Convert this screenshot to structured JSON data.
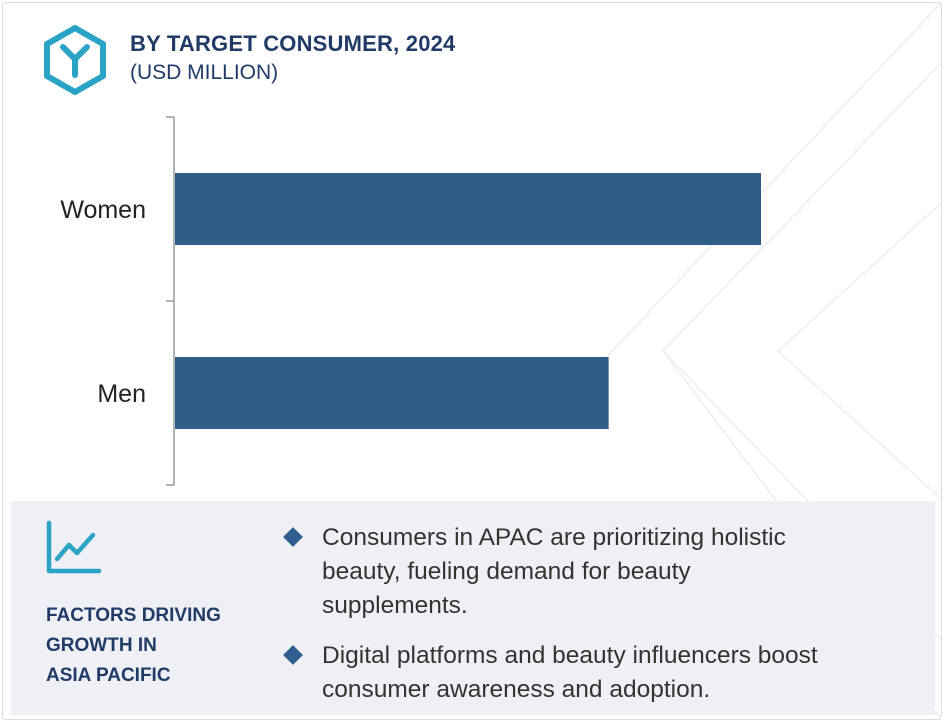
{
  "header": {
    "title": "BY TARGET CONSUMER, 2024",
    "subtitle": "(USD MILLION)",
    "logo_icon": "hexagon-y-logo-icon"
  },
  "chart_data": {
    "type": "bar",
    "orientation": "horizontal",
    "title": "BY TARGET CONSUMER, 2024",
    "subtitle": "(USD MILLION)",
    "categories": [
      "Women",
      "Men"
    ],
    "values": [
      100,
      74
    ],
    "value_scale": "relative (no axis ticks shown)",
    "xlim": [
      0,
      100
    ],
    "bar_color": "#2e5d8a",
    "grid": false,
    "legend": "none"
  },
  "factors_panel": {
    "icon": "trend-line-chart-icon",
    "heading_lines": [
      "FACTORS DRIVING",
      "GROWTH IN",
      "ASIA PACIFIC"
    ],
    "bullets": [
      {
        "lines": [
          "Consumers in APAC are prioritizing holistic",
          "beauty, fueling demand for beauty",
          "supplements."
        ]
      },
      {
        "lines": [
          "Digital platforms and beauty influencers boost",
          "consumer awareness and adoption."
        ]
      }
    ]
  },
  "colors": {
    "brand_navy": "#1f3b66",
    "bar": "#2e5d8a",
    "logo_teal": "#2ba3c4",
    "panel_bg": "#eef0f5"
  }
}
